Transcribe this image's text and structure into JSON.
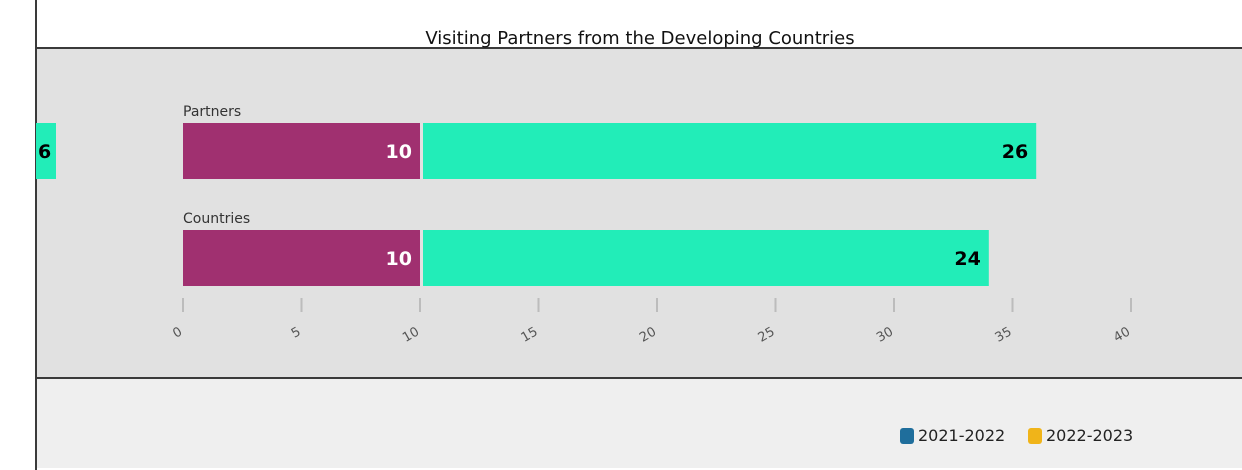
{
  "chart_data": {
    "type": "bar",
    "orientation": "horizontal",
    "stacked": true,
    "title": "Visiting Partners from the Developing Countries",
    "xlabel": "",
    "ylabel": "",
    "categories": [
      "Partners",
      "Countries"
    ],
    "series": [
      {
        "name": "2021-2022",
        "values": [
          10,
          10
        ],
        "color": "#A03070"
      },
      {
        "name": "2022-2023",
        "values": [
          26,
          24
        ],
        "color": "#22EDB8"
      }
    ],
    "offscreen_label": "6",
    "xlim": [
      0,
      60
    ],
    "ticks": [
      0,
      5,
      10,
      15,
      20,
      25,
      30,
      35,
      40,
      45,
      50,
      55,
      60
    ],
    "legend": {
      "items": [
        {
          "label": "2021-2022",
          "color": "#1F6E9C"
        },
        {
          "label": "2022-2023",
          "color": "#F0B419"
        }
      ],
      "position": "bottom-right"
    },
    "grid": false
  }
}
